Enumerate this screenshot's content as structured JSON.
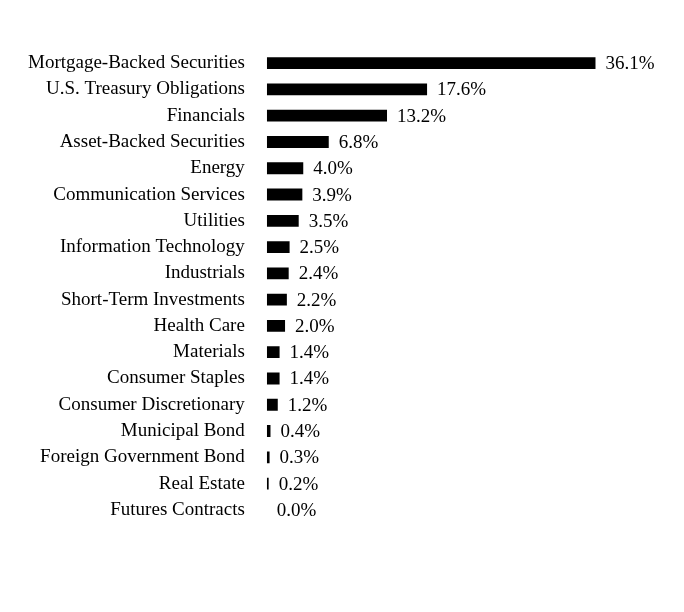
{
  "chart_data": {
    "type": "bar",
    "orientation": "horizontal",
    "categories": [
      "Mortgage-Backed Securities",
      "U.S. Treasury Obligations",
      "Financials",
      "Asset-Backed Securities",
      "Energy",
      "Communication Services",
      "Utilities",
      "Information Technology",
      "Industrials",
      "Short-Term Investments",
      "Health Care",
      "Materials",
      "Consumer Staples",
      "Consumer Discretionary",
      "Municipal Bond",
      "Foreign Government Bond",
      "Real Estate",
      "Futures Contracts"
    ],
    "values": [
      36.1,
      17.6,
      13.2,
      6.8,
      4.0,
      3.9,
      3.5,
      2.5,
      2.4,
      2.2,
      2.0,
      1.4,
      1.4,
      1.2,
      0.4,
      0.3,
      0.2,
      0.0
    ],
    "value_labels": [
      "36.1%",
      "17.6%",
      "13.2%",
      "6.8%",
      "4.0%",
      "3.9%",
      "3.5%",
      "2.5%",
      "2.4%",
      "2.2%",
      "2.0%",
      "1.4%",
      "1.4%",
      "1.2%",
      "0.4%",
      "0.3%",
      "0.2%",
      "0.0%"
    ],
    "color": "#000000",
    "data_labels": true,
    "tick_labels": "y",
    "grid": false
  }
}
